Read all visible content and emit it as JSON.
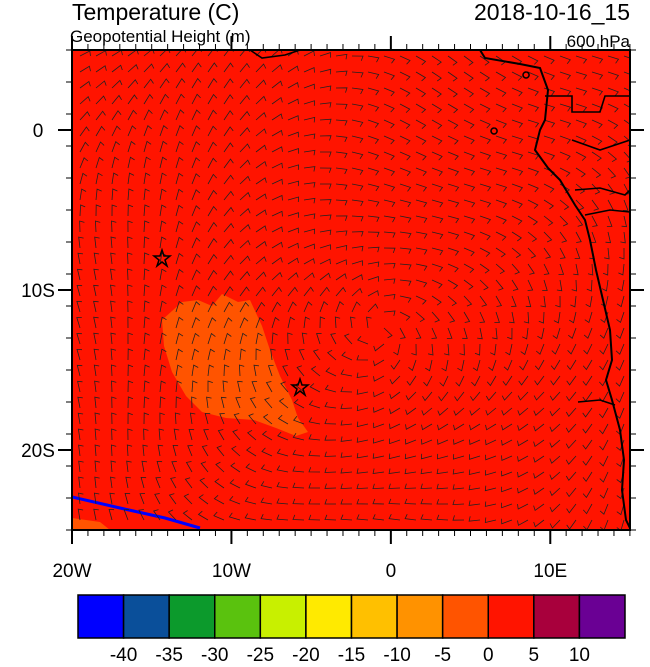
{
  "header": {
    "title": "Temperature (C)",
    "subtitle": "Geopotential Height (m)",
    "date": "2018-10-16_15",
    "level": "600 hPa"
  },
  "map": {
    "lon_range": [
      -20,
      15
    ],
    "lat_range": [
      -25,
      5
    ],
    "lon_ticks": [
      {
        "value": -20,
        "label": "20W"
      },
      {
        "value": -10,
        "label": "10W"
      },
      0,
      {
        "value": 10,
        "label": "10E"
      }
    ],
    "lat_ticks": [
      0,
      {
        "value": -10,
        "label": "10S"
      },
      {
        "value": -20,
        "label": "20S"
      }
    ]
  },
  "colorbar": {
    "colors": [
      "#0000ff",
      "#0a4f9a",
      "#0c9a2c",
      "#5ac20e",
      "#c8f000",
      "#ffea00",
      "#ffc000",
      "#ff9200",
      "#ff5400",
      "#ff1400",
      "#a8003c",
      "#6a0094"
    ],
    "levels": [
      -40,
      -35,
      -30,
      -25,
      -20,
      -15,
      -10,
      -5,
      0,
      5,
      10
    ]
  }
}
